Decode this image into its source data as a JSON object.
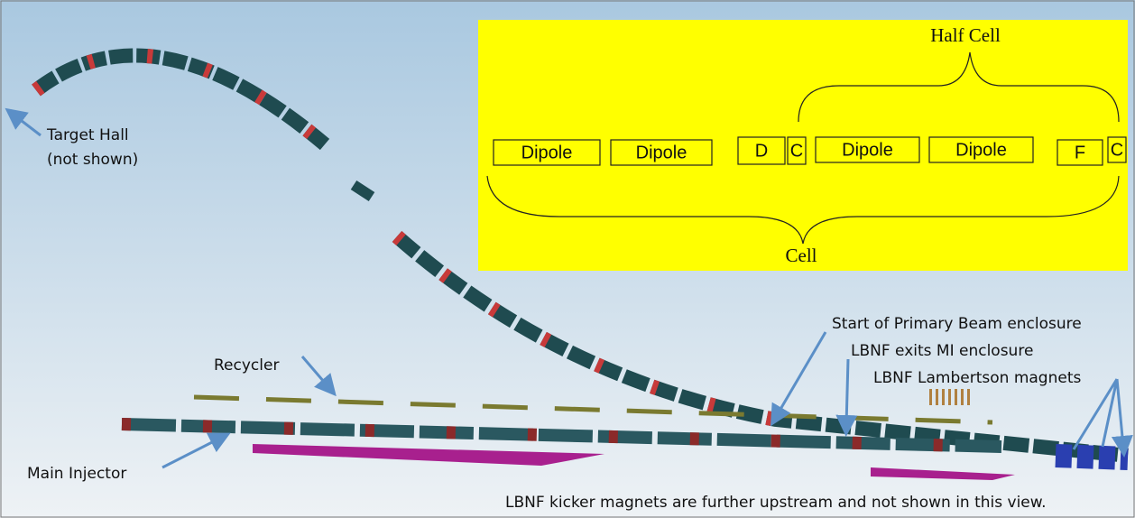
{
  "labels": {
    "target_hall": "Target Hall",
    "not_shown": "(not shown)",
    "recycler": "Recycler",
    "main_injector": "Main Injector",
    "primary_beam": "Start of Primary Beam enclosure",
    "lbnf_exits": "LBNF exits MI enclosure",
    "lambertson": "LBNF Lambertson magnets",
    "kicker": "LBNF kicker magnets are further upstream and not shown in this view."
  },
  "inset": {
    "half_cell": "Half Cell",
    "cell": "Cell",
    "boxes": [
      "Dipole",
      "Dipole",
      "D",
      "C",
      "Dipole",
      "Dipole",
      "F",
      "C"
    ]
  }
}
